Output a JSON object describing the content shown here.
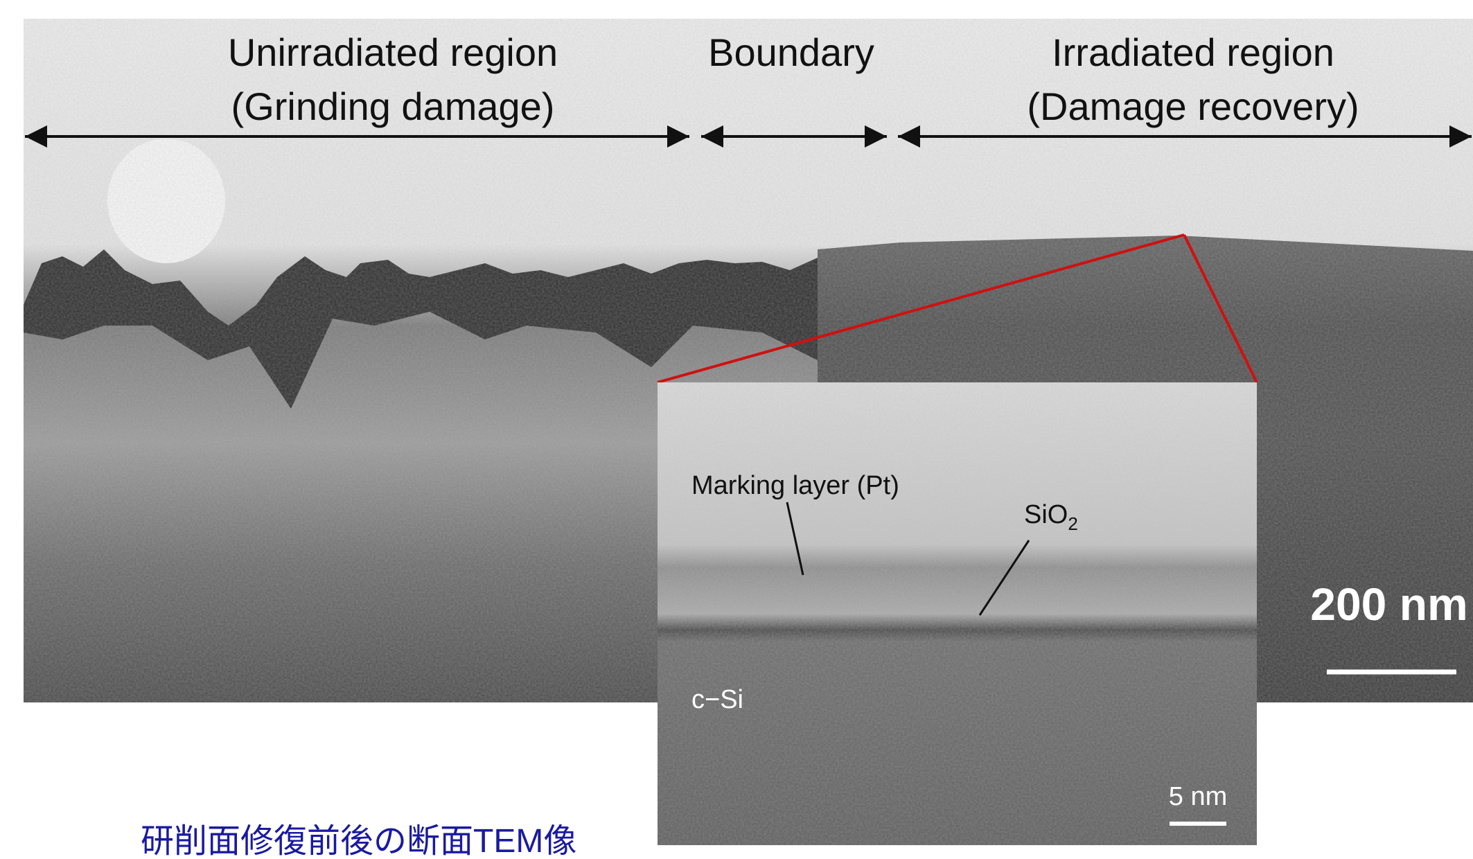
{
  "regions": [
    {
      "name": "Unirradiated region",
      "note": "(Grinding damage)"
    },
    {
      "name": "Boundary"
    },
    {
      "name": "Irradiated region",
      "note": "(Damage recovery)"
    }
  ],
  "main_scale_bar": "200 nm",
  "inset": {
    "marking_layer": "Marking layer (Pt)",
    "oxide": {
      "base": "SiO",
      "subscript": "2"
    },
    "substrate": "c−Si",
    "scale_bar": "5 nm"
  },
  "caption": "研削面修復前後の断面TEM像"
}
